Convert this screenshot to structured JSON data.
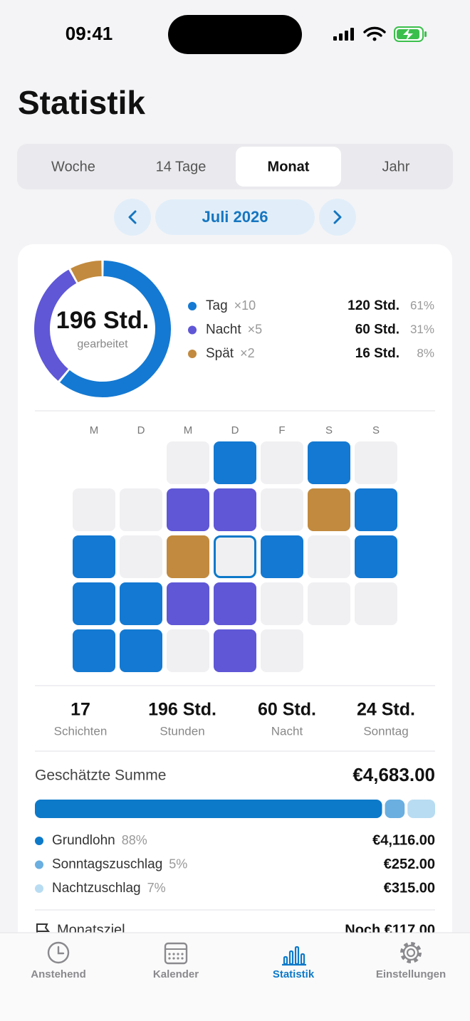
{
  "status_bar": {
    "time": "09:41"
  },
  "header": {
    "title": "Statistik"
  },
  "tabs": {
    "items": [
      "Woche",
      "14 Tage",
      "Monat",
      "Jahr"
    ],
    "selected": 2
  },
  "period": {
    "label": "Juli 2026"
  },
  "breakdown": {
    "total": "196 Std.",
    "total_caption": "gearbeitet",
    "items": [
      {
        "name": "Tag",
        "count": "×10",
        "hours": "120 Std.",
        "share": {
          "value": 61,
          "label": "61%"
        },
        "color": "#1479d2"
      },
      {
        "name": "Nacht",
        "count": "×5",
        "hours": "60 Std.",
        "share": {
          "value": 31,
          "label": "31%"
        },
        "color": "#5f57d6"
      },
      {
        "name": "Spät",
        "count": "×2",
        "hours": "16 Std.",
        "share": {
          "value": 8,
          "label": "8%"
        },
        "color": "#c28a3e"
      }
    ]
  },
  "calendar": {
    "weekdays": [
      "M",
      "D",
      "M",
      "D",
      "F",
      "S",
      "S"
    ],
    "days": [
      null,
      "Tag",
      null,
      "Tag",
      null,
      null,
      null,
      "Nacht",
      "Nacht",
      null,
      "Spät",
      "Tag",
      "Tag",
      null,
      "Spät",
      null,
      "Tag",
      null,
      "Tag",
      "Tag",
      "Tag",
      "Nacht",
      "Nacht",
      null,
      null,
      null,
      "Tag",
      "Tag",
      null,
      "Nacht",
      null
    ]
  },
  "summary": [
    {
      "value": "17",
      "label": "Schichten"
    },
    {
      "value": "196 Std.",
      "label": "Stunden"
    },
    {
      "value": "60 Std.",
      "label": "Nacht"
    },
    {
      "value": "24 Std.",
      "label": "Sonntag"
    }
  ],
  "earnings": {
    "title": "Geschätzte Summe",
    "total": "€4,683.00",
    "items": [
      {
        "name": "Grundlohn",
        "share": {
          "value": 88,
          "label": "88%"
        },
        "amount": "€4,116.00",
        "color": "#0d79c9"
      },
      {
        "name": "Sonntagszuschlag",
        "share": {
          "value": 5,
          "label": "5%"
        },
        "amount": "€252.00",
        "color": "#6aafe0"
      },
      {
        "name": "Nachtzuschlag",
        "share": {
          "value": 7,
          "label": "7%"
        },
        "amount": "€315.00",
        "color": "#b8dcf2"
      }
    ]
  },
  "goal": {
    "title": "Monatsziel",
    "remaining": "Noch €117.00"
  },
  "tab_bar": {
    "items": [
      "Anstehend",
      "Kalender",
      "Statistik",
      "Einstellungen"
    ],
    "selected": 2
  }
}
